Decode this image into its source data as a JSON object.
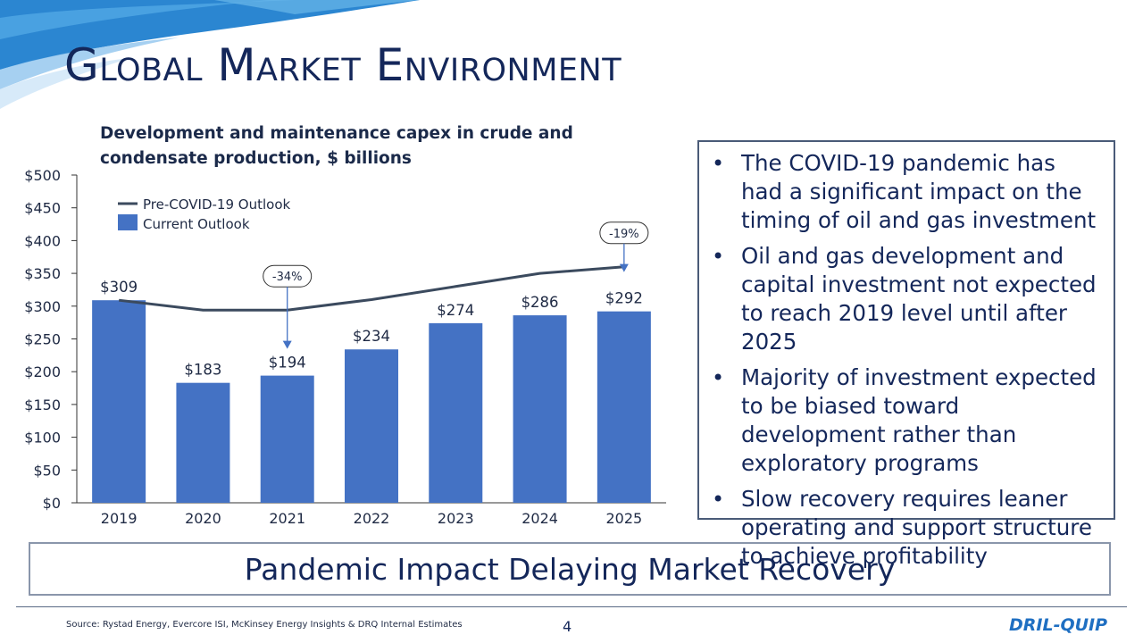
{
  "slide": {
    "title": "Global Market Environment",
    "page_number": "4",
    "source": "Source: Rystad Energy, Evercore ISI, McKinsey Energy Insights & DRQ Internal Estimates",
    "banner": "Pandemic Impact Delaying Market Recovery",
    "logo_text": "DRIL-QUIP"
  },
  "chart_heading": {
    "line1": "Development and maintenance capex in crude and",
    "line2": "condensate production, $ billions"
  },
  "bullets": [
    "The COVID-19 pandemic has had a significant impact on the timing of oil and gas investment",
    "Oil and gas development and capital investment not expected to reach 2019 level until after 2025",
    "Majority of investment expected to be biased toward development rather than exploratory programs",
    "Slow recovery requires leaner operating and support structure to achieve profitability"
  ],
  "colors": {
    "bar": "#4472c4",
    "line": "#3b4a5e",
    "title": "#14275a",
    "annotation_arrow": "#4472c4"
  },
  "chart_data": {
    "type": "bar",
    "title": "",
    "xlabel": "",
    "ylabel": "",
    "categories": [
      "2019",
      "2020",
      "2021",
      "2022",
      "2023",
      "2024",
      "2025"
    ],
    "ylim": [
      0,
      500
    ],
    "yticks": [
      0,
      50,
      100,
      150,
      200,
      250,
      300,
      350,
      400,
      450,
      500
    ],
    "ytick_labels": [
      "$0",
      "$50",
      "$100",
      "$150",
      "$200",
      "$250",
      "$300",
      "$350",
      "$400",
      "$450",
      "$500"
    ],
    "series": [
      {
        "name": "Current Outlook",
        "kind": "bar",
        "values": [
          309,
          183,
          194,
          234,
          274,
          286,
          292
        ],
        "labels": [
          "$309",
          "$183",
          "$194",
          "$234",
          "$274",
          "$286",
          "$292"
        ]
      },
      {
        "name": "Pre-COVID-19 Outlook",
        "kind": "line",
        "values": [
          309,
          294,
          294,
          310,
          330,
          350,
          360
        ]
      }
    ],
    "annotations": [
      {
        "category": "2021",
        "text": "-34%"
      },
      {
        "category": "2025",
        "text": "-19%"
      }
    ],
    "legend": {
      "position": "top-left"
    },
    "grid": false
  }
}
